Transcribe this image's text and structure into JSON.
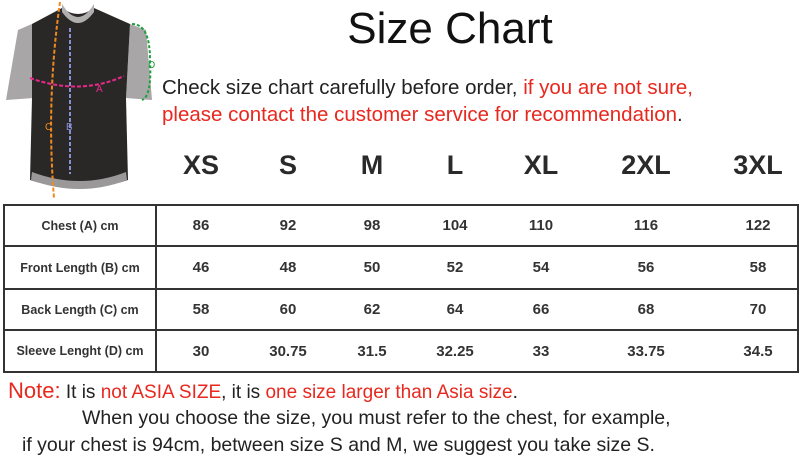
{
  "title": "Size Chart",
  "intro": {
    "black": "Check size chart carefully before order, ",
    "red1": "if you are not sure,",
    "red2": "please contact the customer service for recommendation",
    "end": "."
  },
  "diagram": {
    "labels": [
      "A",
      "B",
      "C",
      "D"
    ],
    "colors": {
      "A": "#e8288a",
      "B": "#8a8fd8",
      "C": "#f08a1e",
      "D": "#1ea040"
    }
  },
  "sizes": [
    "XS",
    "S",
    "M",
    "L",
    "XL",
    "2XL",
    "3XL"
  ],
  "rows": [
    {
      "label": "Chest (A) cm",
      "values": [
        "86",
        "92",
        "98",
        "104",
        "110",
        "116",
        "122"
      ]
    },
    {
      "label": "Front Length (B) cm",
      "values": [
        "46",
        "48",
        "50",
        "52",
        "54",
        "56",
        "58"
      ]
    },
    {
      "label": "Back Length (C) cm",
      "values": [
        "58",
        "60",
        "62",
        "64",
        "66",
        "68",
        "70"
      ]
    },
    {
      "label": "Sleeve Lenght (D) cm",
      "values": [
        "30",
        "30.75",
        "31.5",
        "32.25",
        "33",
        "33.75",
        "34.5"
      ]
    }
  ],
  "note": {
    "label": "Note:",
    "t1": " It is ",
    "r1": "not ASIA SIZE",
    "t2": ", it is ",
    "r2": "one size larger than Asia size",
    "t3": ".",
    "line2": "When you choose the size, you must refer to the chest, for example,",
    "line3": "if your chest is 94cm, between size S and M, we suggest you take size S."
  },
  "colors": {
    "accent_red": "#e8281e",
    "text": "#222222",
    "border": "#333333"
  }
}
